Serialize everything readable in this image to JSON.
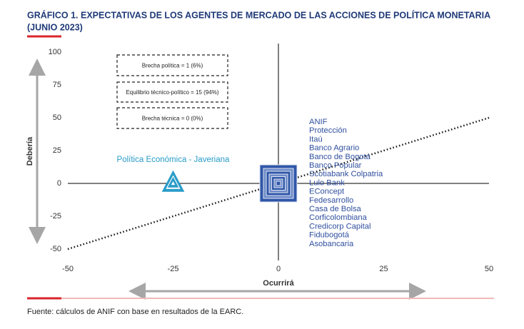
{
  "chart_data": {
    "type": "scatter",
    "title": [
      "GRÁFICO 1. EXPECTATIVAS DE LOS AGENTES DE MERCADO DE LAS ACCIONES DE POLÍTICA MONETARIA",
      "(JUNIO 2023)"
    ],
    "x_label": "Ocurrirá",
    "y_label": "Debería",
    "xlim": [
      -50,
      50
    ],
    "ylim": [
      -50,
      100
    ],
    "xticks": [
      -50,
      -25,
      0,
      25,
      50
    ],
    "yticks": [
      -50,
      -25,
      0,
      25,
      50,
      75,
      100
    ],
    "series": [
      {
        "name": "Política Económica - Javeriana",
        "color": "#2a9cc8",
        "marker": "triangle",
        "x": [
          -25
        ],
        "values": [
          0
        ]
      },
      {
        "labels": [
          "ANIF",
          "Protección",
          "Itaú",
          "Banco Agrario",
          "Banco de Bogotá",
          "Banco Popular",
          "Scotiabank Colpatria",
          "Lulo Bank",
          "EConcept",
          "Fedesarrollo",
          "Casa de Bolsa",
          "Corficolombiana",
          "Credicorp Capital",
          "Fidubogotá",
          "Asobancaria"
        ],
        "color": "#2f4f9e",
        "marker": "square",
        "x": [
          0
        ],
        "values": [
          0
        ]
      }
    ],
    "reference_line": {
      "x": [
        -50,
        50
      ],
      "values": [
        -50,
        50
      ]
    },
    "annotations": [
      "Brecha política = 1 (6%)",
      "Equilibrio técnico-político = 15 (94%)",
      "Brecha técnica = 0 (0%)"
    ],
    "source": "Fuente: cálculos de ANIF con base en resultados de la EARC."
  }
}
